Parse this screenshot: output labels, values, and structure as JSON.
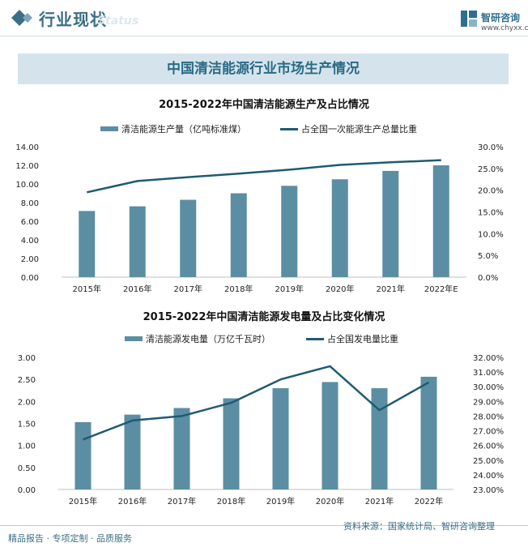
{
  "header": {
    "title": "行业现状",
    "ghost_text": "Status",
    "brand_name": "智研咨询",
    "brand_url": "www.chyxx.com"
  },
  "banner": {
    "title": "中国清洁能源行业市场生产情况"
  },
  "colors": {
    "bar": "#5b8ea3",
    "line": "#1f5b73",
    "accent": "#3a6f86",
    "banner_bg": "#d5e4ec"
  },
  "chart_data": [
    {
      "type": "bar",
      "title": "2015-2022年中国清洁能源生产及占比情况",
      "categories": [
        "2015年",
        "2016年",
        "2017年",
        "2018年",
        "2019年",
        "2020年",
        "2021年",
        "2022年E"
      ],
      "series": [
        {
          "name": "清洁能源生产量（亿吨标准煤）",
          "type": "bar",
          "axis": "left",
          "values": [
            7.1,
            7.6,
            8.3,
            9.0,
            9.8,
            10.5,
            11.4,
            12.0
          ]
        },
        {
          "name": "占全国一次能源生产总量比重",
          "type": "line",
          "axis": "right",
          "values": [
            19.5,
            22.1,
            23.0,
            23.8,
            24.7,
            25.8,
            26.4,
            26.9
          ]
        }
      ],
      "left_ticks": [
        "0.00",
        "2.00",
        "4.00",
        "6.00",
        "8.00",
        "10.00",
        "12.00",
        "14.00"
      ],
      "right_ticks": [
        "0.0%",
        "5.0%",
        "10.0%",
        "15.0%",
        "20.0%",
        "25.0%",
        "30.0%"
      ],
      "ylim_left": [
        0,
        14
      ],
      "ylim_right": [
        0,
        30
      ]
    },
    {
      "type": "bar",
      "title": "2015-2022年中国清洁能源发电量及占比变化情况",
      "categories": [
        "2015年",
        "2016年",
        "2017年",
        "2018年",
        "2019年",
        "2020年",
        "2021年",
        "2022年"
      ],
      "series": [
        {
          "name": "清洁能源发电量（万亿千瓦时）",
          "type": "bar",
          "axis": "left",
          "values": [
            1.53,
            1.7,
            1.85,
            2.07,
            2.3,
            2.44,
            2.3,
            2.56
          ]
        },
        {
          "name": "占全国发电量比重",
          "type": "line",
          "axis": "right",
          "values": [
            26.4,
            27.7,
            28.0,
            28.9,
            30.5,
            31.4,
            28.4,
            30.3
          ]
        }
      ],
      "left_ticks": [
        "0.00",
        "0.50",
        "1.00",
        "1.50",
        "2.00",
        "2.50",
        "3.00"
      ],
      "right_ticks": [
        "23.00%",
        "24.00%",
        "25.00%",
        "26.00%",
        "27.00%",
        "28.00%",
        "29.00%",
        "30.00%",
        "31.00%",
        "32.00%"
      ],
      "ylim_left": [
        0,
        3
      ],
      "ylim_right": [
        23,
        32
      ]
    }
  ],
  "footer": {
    "left_text": "精品报告 · 专项定制 · 品质服务",
    "source_text": "资料来源：国家统计局、智研咨询整理"
  }
}
